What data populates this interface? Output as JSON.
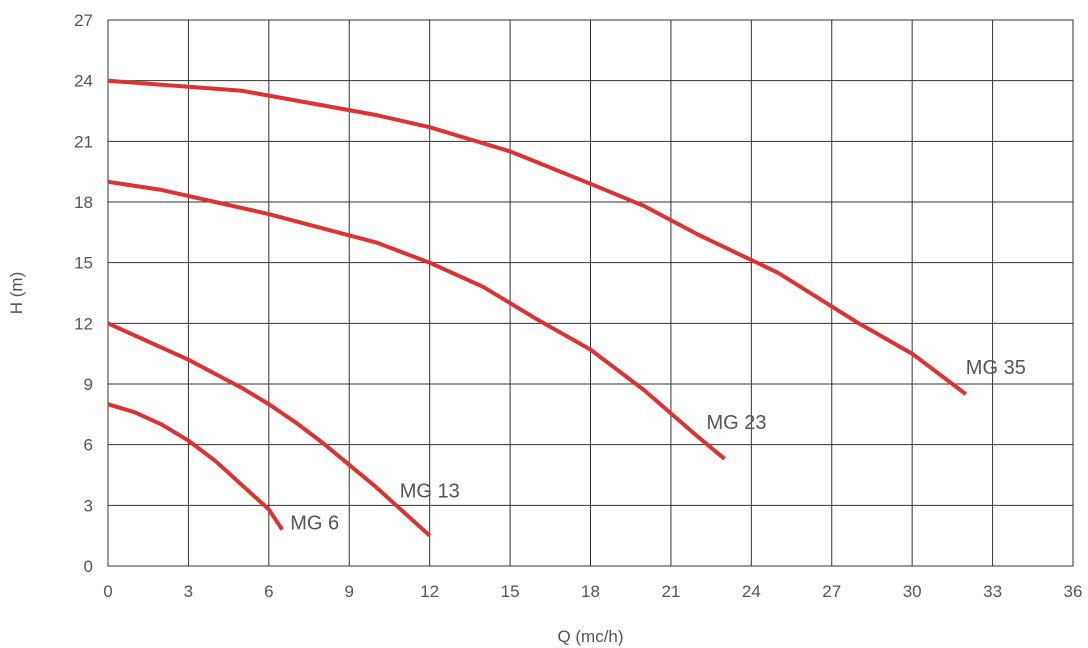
{
  "chart_data": {
    "type": "line",
    "title": "",
    "xlabel": "Q (mc/h)",
    "ylabel": "H (m)",
    "xlim": [
      0,
      36
    ],
    "ylim": [
      0,
      27
    ],
    "xticks": [
      0,
      3,
      6,
      9,
      12,
      15,
      18,
      21,
      24,
      27,
      30,
      33,
      36
    ],
    "yticks": [
      0,
      3,
      6,
      9,
      12,
      15,
      18,
      21,
      24,
      27
    ],
    "grid": true,
    "legend": "none",
    "line_color": "#dc3232",
    "series": [
      {
        "name": "MG 6",
        "x": [
          0,
          1,
          2,
          3,
          4,
          5,
          6,
          6.5
        ],
        "y": [
          8.0,
          7.6,
          7.0,
          6.2,
          5.2,
          4.0,
          2.8,
          1.8
        ]
      },
      {
        "name": "MG 13",
        "x": [
          0,
          1,
          2,
          3,
          4,
          5,
          6,
          7,
          8,
          9,
          10,
          11,
          12
        ],
        "y": [
          12.0,
          11.4,
          10.8,
          10.2,
          9.5,
          8.8,
          8.0,
          7.1,
          6.1,
          5.0,
          3.9,
          2.7,
          1.5
        ]
      },
      {
        "name": "MG 23",
        "x": [
          0,
          2,
          4,
          6,
          8,
          10,
          12,
          14,
          16,
          18,
          20,
          22,
          23
        ],
        "y": [
          19.0,
          18.6,
          18.0,
          17.4,
          16.7,
          16.0,
          15.0,
          13.8,
          12.2,
          10.7,
          8.7,
          6.4,
          5.3
        ]
      },
      {
        "name": "MG 35",
        "x": [
          0,
          5,
          10,
          12,
          15,
          18,
          20,
          22,
          25,
          28,
          30,
          32
        ],
        "y": [
          24.0,
          23.5,
          22.3,
          21.7,
          20.5,
          18.9,
          17.8,
          16.4,
          14.5,
          12.0,
          10.5,
          8.5
        ]
      }
    ]
  }
}
